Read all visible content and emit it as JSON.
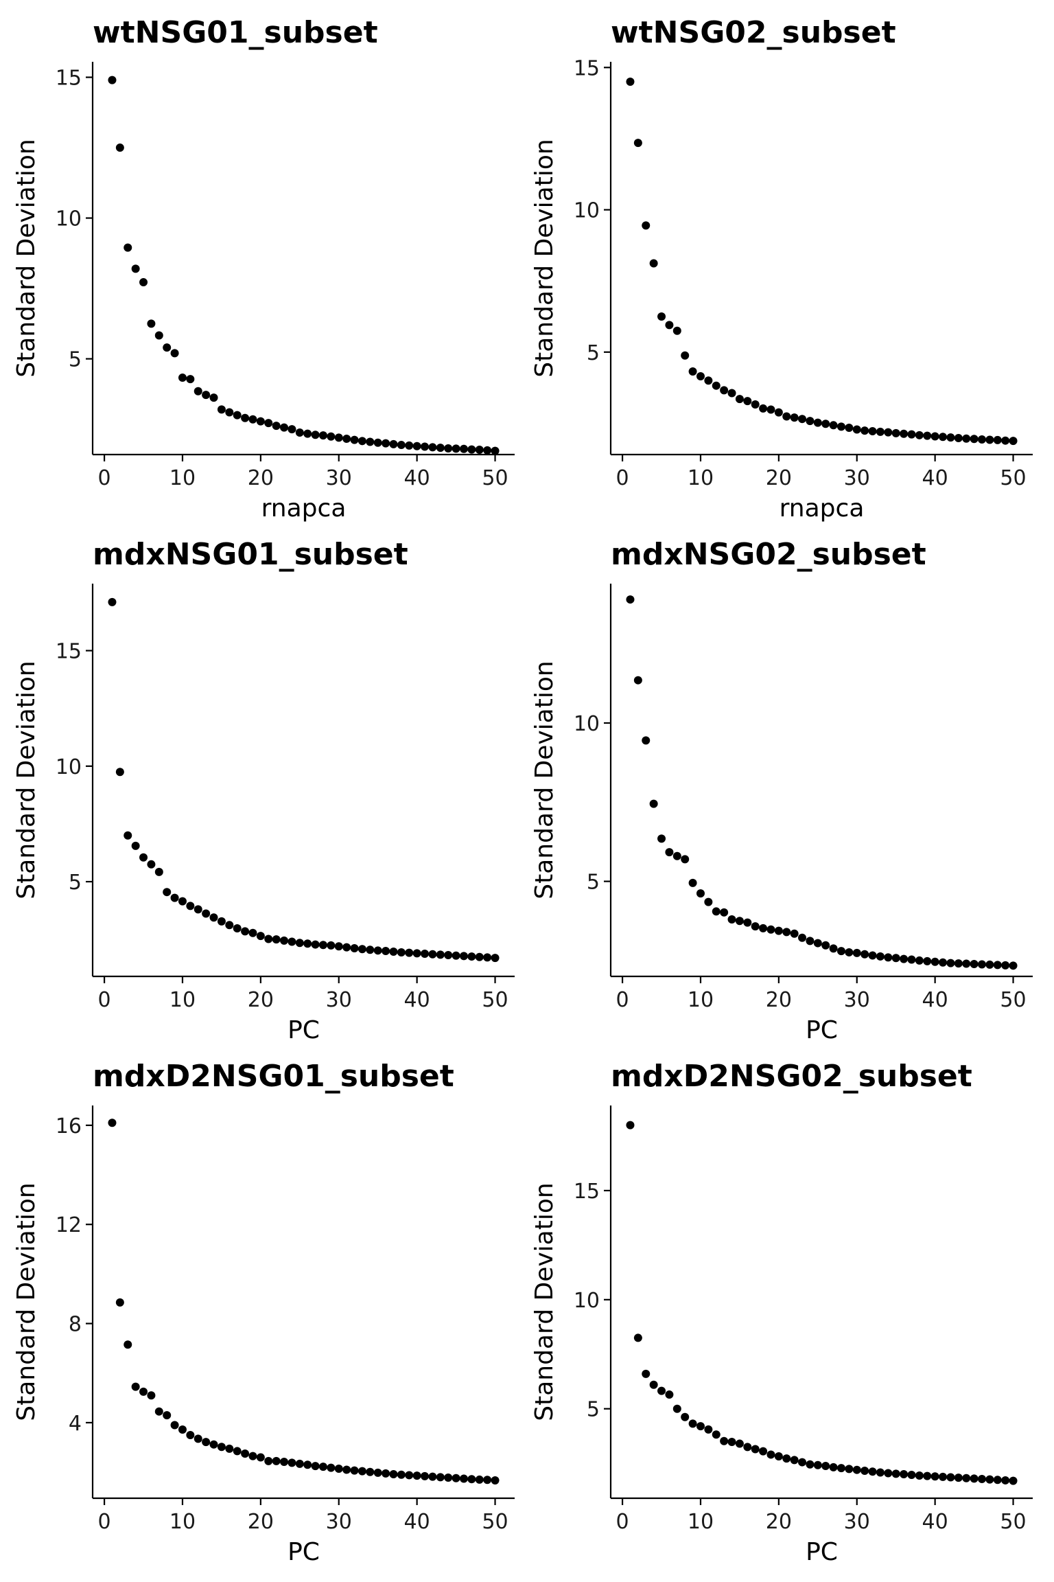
{
  "chart_data": [
    {
      "type": "scatter",
      "title": "wtNSG01_subset",
      "xlabel": "rnapca",
      "ylabel": "Standard Deviation",
      "xlim": [
        -1.5,
        52.5
      ],
      "ylim": [
        1.6,
        15.55
      ],
      "xticks": [
        0,
        10,
        20,
        30,
        40,
        50
      ],
      "yticks": [
        5,
        10,
        15
      ],
      "x": [
        1,
        2,
        3,
        4,
        5,
        6,
        7,
        8,
        9,
        10,
        11,
        12,
        13,
        14,
        15,
        16,
        17,
        18,
        19,
        20,
        21,
        22,
        23,
        24,
        25,
        26,
        27,
        28,
        29,
        30,
        31,
        32,
        33,
        34,
        35,
        36,
        37,
        38,
        39,
        40,
        41,
        42,
        43,
        44,
        45,
        46,
        47,
        48,
        49,
        50
      ],
      "y": [
        14.9,
        12.5,
        8.95,
        8.2,
        7.72,
        6.25,
        5.83,
        5.4,
        5.2,
        4.33,
        4.28,
        3.85,
        3.72,
        3.62,
        3.2,
        3.1,
        3.0,
        2.9,
        2.85,
        2.78,
        2.72,
        2.62,
        2.56,
        2.5,
        2.38,
        2.34,
        2.3,
        2.28,
        2.24,
        2.2,
        2.16,
        2.12,
        2.08,
        2.05,
        2.02,
        2.0,
        1.97,
        1.94,
        1.92,
        1.9,
        1.88,
        1.86,
        1.84,
        1.82,
        1.81,
        1.8,
        1.78,
        1.77,
        1.75,
        1.73
      ]
    },
    {
      "type": "scatter",
      "title": "wtNSG02_subset",
      "xlabel": "rnapca",
      "ylabel": "Standard Deviation",
      "xlim": [
        -1.5,
        52.5
      ],
      "ylim": [
        1.4,
        15.2
      ],
      "xticks": [
        0,
        10,
        20,
        30,
        40,
        50
      ],
      "yticks": [
        5,
        10,
        15
      ],
      "x": [
        1,
        2,
        3,
        4,
        5,
        6,
        7,
        8,
        9,
        10,
        11,
        12,
        13,
        14,
        15,
        16,
        17,
        18,
        19,
        20,
        21,
        22,
        23,
        24,
        25,
        26,
        27,
        28,
        29,
        30,
        31,
        32,
        33,
        34,
        35,
        36,
        37,
        38,
        39,
        40,
        41,
        42,
        43,
        44,
        45,
        46,
        47,
        48,
        49,
        50
      ],
      "y": [
        14.5,
        12.35,
        9.45,
        8.12,
        6.25,
        5.95,
        5.75,
        4.88,
        4.32,
        4.15,
        4.0,
        3.82,
        3.66,
        3.56,
        3.35,
        3.28,
        3.16,
        3.02,
        2.98,
        2.88,
        2.74,
        2.7,
        2.65,
        2.58,
        2.52,
        2.48,
        2.43,
        2.38,
        2.34,
        2.28,
        2.24,
        2.22,
        2.2,
        2.18,
        2.15,
        2.13,
        2.11,
        2.08,
        2.06,
        2.04,
        2.02,
        2.0,
        1.98,
        1.96,
        1.95,
        1.93,
        1.92,
        1.91,
        1.89,
        1.88
      ]
    },
    {
      "type": "scatter",
      "title": "mdxNSG01_subset",
      "xlabel": "PC",
      "ylabel": "Standard Deviation",
      "xlim": [
        -1.5,
        52.5
      ],
      "ylim": [
        0.9,
        17.9
      ],
      "xticks": [
        0,
        10,
        20,
        30,
        40,
        50
      ],
      "yticks": [
        5,
        10,
        15
      ],
      "x": [
        1,
        2,
        3,
        4,
        5,
        6,
        7,
        8,
        9,
        10,
        11,
        12,
        13,
        14,
        15,
        16,
        17,
        18,
        19,
        20,
        21,
        22,
        23,
        24,
        25,
        26,
        27,
        28,
        29,
        30,
        31,
        32,
        33,
        34,
        35,
        36,
        37,
        38,
        39,
        40,
        41,
        42,
        43,
        44,
        45,
        46,
        47,
        48,
        49,
        50
      ],
      "y": [
        17.1,
        9.75,
        7.0,
        6.55,
        6.05,
        5.75,
        5.42,
        4.55,
        4.3,
        4.15,
        3.95,
        3.8,
        3.62,
        3.45,
        3.28,
        3.12,
        2.98,
        2.85,
        2.78,
        2.65,
        2.52,
        2.5,
        2.45,
        2.4,
        2.35,
        2.32,
        2.28,
        2.26,
        2.24,
        2.2,
        2.16,
        2.12,
        2.08,
        2.05,
        2.02,
        2.0,
        1.97,
        1.94,
        1.92,
        1.9,
        1.88,
        1.86,
        1.84,
        1.82,
        1.8,
        1.78,
        1.76,
        1.74,
        1.72,
        1.7
      ]
    },
    {
      "type": "scatter",
      "title": "mdxNSG02_subset",
      "xlabel": "PC",
      "ylabel": "Standard Deviation",
      "xlim": [
        -1.5,
        52.5
      ],
      "ylim": [
        2.0,
        14.4
      ],
      "xticks": [
        0,
        10,
        20,
        30,
        40,
        50
      ],
      "yticks": [
        5,
        10
      ],
      "x": [
        1,
        2,
        3,
        4,
        5,
        6,
        7,
        8,
        9,
        10,
        11,
        12,
        13,
        14,
        15,
        16,
        17,
        18,
        19,
        20,
        21,
        22,
        23,
        24,
        25,
        26,
        27,
        28,
        29,
        30,
        31,
        32,
        33,
        34,
        35,
        36,
        37,
        38,
        39,
        40,
        41,
        42,
        43,
        44,
        45,
        46,
        47,
        48,
        49,
        50
      ],
      "y": [
        13.9,
        11.35,
        9.45,
        7.45,
        6.35,
        5.92,
        5.8,
        5.7,
        4.95,
        4.62,
        4.35,
        4.05,
        4.02,
        3.8,
        3.75,
        3.7,
        3.58,
        3.52,
        3.48,
        3.44,
        3.4,
        3.35,
        3.22,
        3.12,
        3.05,
        2.98,
        2.88,
        2.8,
        2.76,
        2.74,
        2.7,
        2.66,
        2.63,
        2.6,
        2.58,
        2.55,
        2.53,
        2.5,
        2.48,
        2.46,
        2.44,
        2.42,
        2.41,
        2.4,
        2.39,
        2.38,
        2.37,
        2.36,
        2.35,
        2.34
      ]
    },
    {
      "type": "scatter",
      "title": "mdxD2NSG01_subset",
      "xlabel": "PC",
      "ylabel": "Standard Deviation",
      "xlim": [
        -1.5,
        52.5
      ],
      "ylim": [
        0.95,
        16.8
      ],
      "xticks": [
        0,
        10,
        20,
        30,
        40,
        50
      ],
      "yticks": [
        4,
        8,
        12,
        16
      ],
      "x": [
        1,
        2,
        3,
        4,
        5,
        6,
        7,
        8,
        9,
        10,
        11,
        12,
        13,
        14,
        15,
        16,
        17,
        18,
        19,
        20,
        21,
        22,
        23,
        24,
        25,
        26,
        27,
        28,
        29,
        30,
        31,
        32,
        33,
        34,
        35,
        36,
        37,
        38,
        39,
        40,
        41,
        42,
        43,
        44,
        45,
        46,
        47,
        48,
        49,
        50
      ],
      "y": [
        16.1,
        8.85,
        7.15,
        5.45,
        5.25,
        5.1,
        4.45,
        4.3,
        3.9,
        3.72,
        3.5,
        3.35,
        3.22,
        3.12,
        3.02,
        2.95,
        2.85,
        2.75,
        2.65,
        2.6,
        2.45,
        2.45,
        2.42,
        2.38,
        2.34,
        2.3,
        2.25,
        2.22,
        2.18,
        2.14,
        2.1,
        2.07,
        2.04,
        2.01,
        1.98,
        1.95,
        1.92,
        1.9,
        1.88,
        1.86,
        1.84,
        1.82,
        1.8,
        1.78,
        1.76,
        1.74,
        1.72,
        1.7,
        1.69,
        1.67
      ]
    },
    {
      "type": "scatter",
      "title": "mdxD2NSG02_subset",
      "xlabel": "PC",
      "ylabel": "Standard Deviation",
      "xlim": [
        -1.5,
        52.5
      ],
      "ylim": [
        0.9,
        18.9
      ],
      "xticks": [
        0,
        10,
        20,
        30,
        40,
        50
      ],
      "yticks": [
        5,
        10,
        15
      ],
      "x": [
        1,
        2,
        3,
        4,
        5,
        6,
        7,
        8,
        9,
        10,
        11,
        12,
        13,
        14,
        15,
        16,
        17,
        18,
        19,
        20,
        21,
        22,
        23,
        24,
        25,
        26,
        27,
        28,
        29,
        30,
        31,
        32,
        33,
        34,
        35,
        36,
        37,
        38,
        39,
        40,
        41,
        42,
        43,
        44,
        45,
        46,
        47,
        48,
        49,
        50
      ],
      "y": [
        18.0,
        8.25,
        6.6,
        6.1,
        5.82,
        5.65,
        5.0,
        4.62,
        4.32,
        4.2,
        4.05,
        3.82,
        3.52,
        3.48,
        3.4,
        3.25,
        3.15,
        3.05,
        2.9,
        2.82,
        2.72,
        2.65,
        2.55,
        2.45,
        2.42,
        2.38,
        2.32,
        2.28,
        2.24,
        2.2,
        2.16,
        2.12,
        2.08,
        2.05,
        2.02,
        2.0,
        1.97,
        1.94,
        1.92,
        1.9,
        1.88,
        1.86,
        1.84,
        1.82,
        1.8,
        1.78,
        1.76,
        1.74,
        1.72,
        1.7
      ]
    }
  ]
}
